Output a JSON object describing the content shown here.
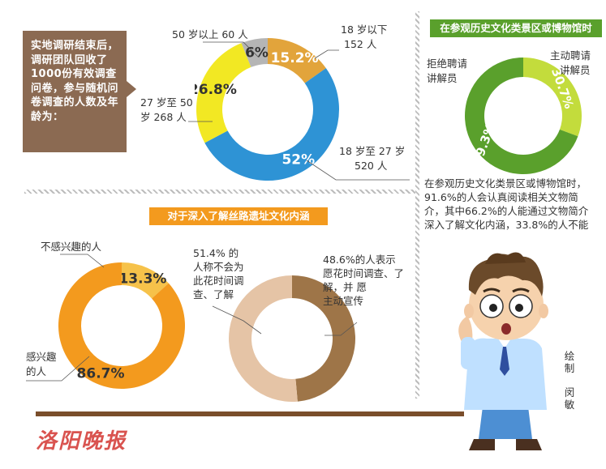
{
  "intro_text": "实地调研结束后，调研团队回收了1000份有效调查问卷，参与随机问卷调查的人数及年龄为：",
  "colors": {
    "orange": "#f39a1e",
    "green_dark": "#5aa02c",
    "green_light": "#c3dc3c",
    "blue": "#2e93d5",
    "yellow": "#f2e823",
    "gold": "#e2a43b",
    "gray": "#b5b5b5",
    "tan": "#e5c4a6",
    "brown": "#9e7548",
    "brown_box": "#8b6a52"
  },
  "charts": {
    "age": {
      "labels": {
        "under18_a": "18 岁以下",
        "under18_b": "152 人",
        "over50_a": "50 岁以上 60 人",
        "r27_50_a": "27 岁至 50",
        "r27_50_b": "岁 268 人",
        "r18_27_a": "18 岁至 27 岁",
        "r18_27_b": "520 人"
      }
    },
    "museum": {
      "title": "在参观历史文化类景区或博物馆时",
      "labels": {
        "refuse_a": "拒绝聘请",
        "refuse_b": "讲解员",
        "active_a": "主动聘请",
        "active_b": "讲解员"
      },
      "desc": "在参观历史文化类景区或博物馆时，91.6%的人会认真阅读相关文物简介，其中66.2%的人能通过文物简介深入了解文化内涵，33.8%的人不能"
    },
    "interest": {
      "title": "对于深入了解丝路遗址文化内涵",
      "labels": {
        "no_a": "不感兴趣的人",
        "yes_a": "感兴趣",
        "yes_b": "的人"
      }
    },
    "time": {
      "labels": {
        "no_lines": [
          "51.4% 的",
          "人称不会为",
          "此花时间调",
          "查、了解"
        ],
        "yes_lines": [
          "48.6%的人表示",
          "愿花时间调查、了",
          "解，并  愿",
          "主动宣传"
        ]
      }
    }
  },
  "signature": "绘制 闵敏",
  "signature_chars": [
    "绘",
    "制",
    "",
    "闵",
    "敏"
  ],
  "logo_text": "洛阳晚报",
  "chart_data": [
    {
      "type": "pie",
      "categories": [
        "18 岁以下",
        "18 岁至 27 岁",
        "27 岁至 50 岁",
        "50 岁以上"
      ],
      "values": [
        15.2,
        52,
        26.8,
        6
      ],
      "labels": [
        "15.2%",
        "52%",
        "26.8%",
        "6%"
      ],
      "counts": [
        152,
        520,
        268,
        60
      ],
      "colors": [
        "#e2a43b",
        "#2e93d5",
        "#f2e823",
        "#b5b5b5"
      ],
      "donut": true
    },
    {
      "type": "pie",
      "title": "在参观历史文化类景区或博物馆时",
      "categories": [
        "主动聘请讲解员",
        "拒绝聘请讲解员"
      ],
      "values": [
        30.7,
        69.3
      ],
      "labels": [
        "30.7%",
        "69.3%"
      ],
      "colors": [
        "#c3dc3c",
        "#5aa02c"
      ],
      "donut": true
    },
    {
      "type": "pie",
      "title": "对于深入了解丝路遗址文化内涵",
      "categories": [
        "不感兴趣的人",
        "感兴趣的人"
      ],
      "values": [
        13.3,
        86.7
      ],
      "labels": [
        "13.3%",
        "86.7%"
      ],
      "colors": [
        "#f6c24a",
        "#f39a1e"
      ],
      "donut": true
    },
    {
      "type": "pie",
      "categories": [
        "愿花时间调查、了解，并愿主动宣传",
        "不会为此花时间调查、了解"
      ],
      "values": [
        48.6,
        51.4
      ],
      "colors": [
        "#9e7548",
        "#e5c4a6"
      ],
      "donut": true
    }
  ]
}
